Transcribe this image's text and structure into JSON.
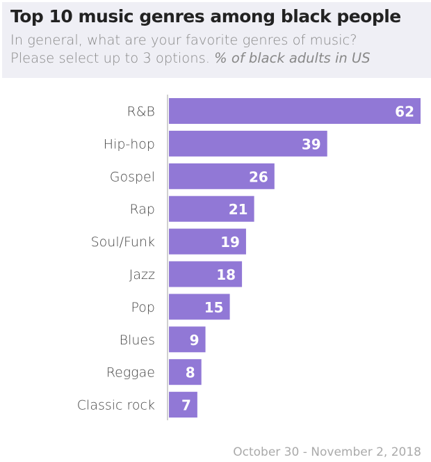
{
  "chart_data": {
    "type": "bar",
    "orientation": "horizontal",
    "title": "Top 10 music genres among black people",
    "subtitle_line1": "In general, what are your favorite genres of music?",
    "subtitle_line2": "Please select up to 3 options.",
    "unit_note": "% of black adults in US",
    "categories": [
      "R&B",
      "Hip-hop",
      "Gospel",
      "Rap",
      "Soul/Funk",
      "Jazz",
      "Pop",
      "Blues",
      "Reggae",
      "Classic rock"
    ],
    "values": [
      62,
      39,
      26,
      21,
      19,
      18,
      15,
      9,
      8,
      7
    ],
    "xlim": [
      0,
      62
    ],
    "grid": false,
    "data_labels": true,
    "bar_color": "#9178d6",
    "footer": "October 30 - November 2, 2018"
  }
}
